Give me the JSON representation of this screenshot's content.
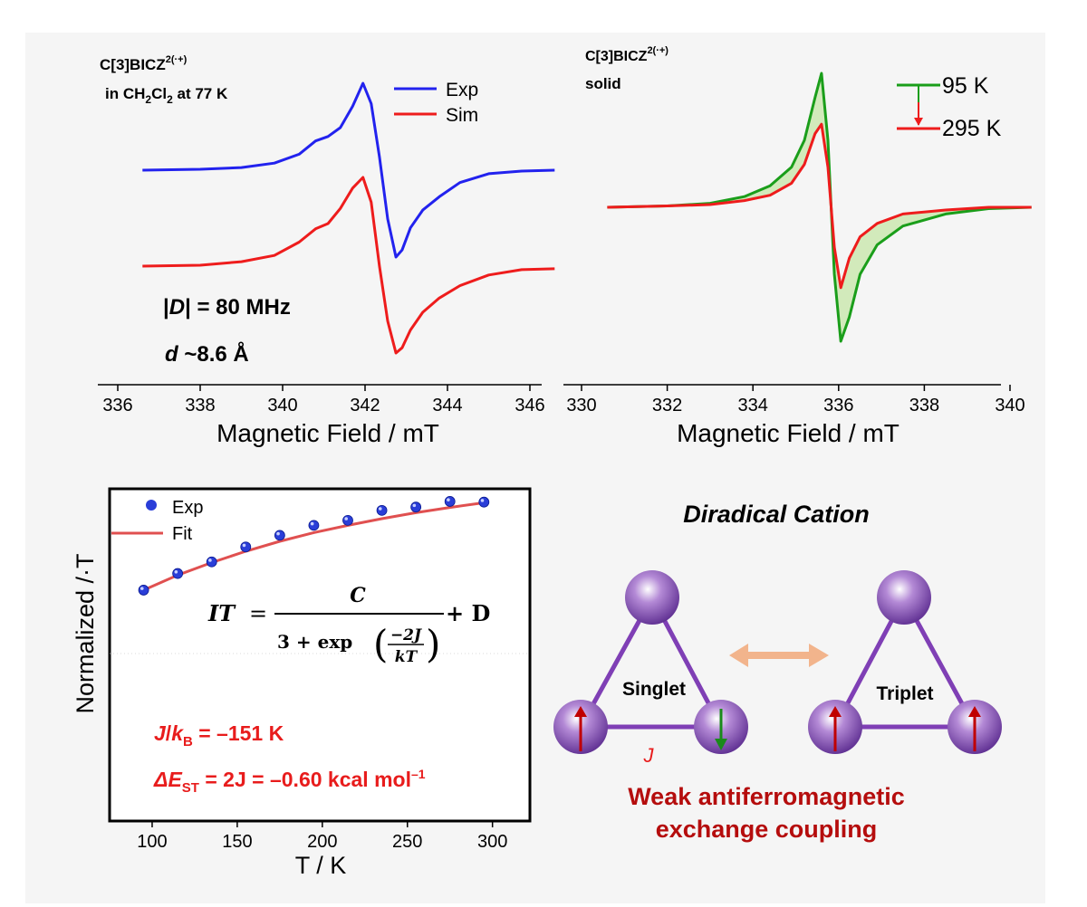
{
  "colors": {
    "background": "#f5f5f5",
    "exp": "#2222ee",
    "sim": "#ee1c1c",
    "green": "#1a9e1a",
    "red": "#ee1c1c",
    "dark_red": "#b50d0d",
    "purple": "#7f3fb5",
    "arrow": "#f2b48c"
  },
  "chart_data": [
    {
      "type": "line",
      "title": "C[3]BICZ",
      "title_sup": "2(·+)",
      "subtitle_parts": [
        "in CH",
        "2",
        "Cl",
        "2",
        " at 77 K"
      ],
      "xlabel": "Magnetic Field / mT",
      "ylabel": "",
      "xlim": [
        336,
        347
      ],
      "xticks": [
        336,
        338,
        340,
        342,
        344,
        346
      ],
      "legend_position": "top-right",
      "annotations": {
        "D_prefix": "|",
        "D_var": "D",
        "D_rest": "| = 80 MHz",
        "d_var": "d",
        "d_rest": " ~8.6 Å"
      },
      "series": [
        {
          "name": "Exp",
          "x": [
            336.6,
            338.0,
            339.0,
            339.8,
            340.4,
            340.8,
            341.1,
            341.4,
            341.7,
            341.95,
            342.15,
            342.35,
            342.55,
            342.75,
            342.9,
            343.1,
            343.4,
            343.8,
            344.3,
            345.0,
            345.8,
            346.6
          ],
          "y": [
            0.0,
            0.01,
            0.03,
            0.08,
            0.18,
            0.33,
            0.38,
            0.48,
            0.72,
            0.98,
            0.75,
            0.15,
            -0.55,
            -0.98,
            -0.9,
            -0.65,
            -0.45,
            -0.3,
            -0.14,
            -0.04,
            -0.01,
            0.0
          ]
        },
        {
          "name": "Sim",
          "x": [
            336.6,
            338.0,
            339.0,
            339.8,
            340.4,
            340.8,
            341.1,
            341.4,
            341.7,
            341.95,
            342.15,
            342.35,
            342.55,
            342.75,
            342.9,
            343.1,
            343.4,
            343.8,
            344.3,
            345.0,
            345.8,
            346.6
          ],
          "y": [
            0.0,
            0.01,
            0.05,
            0.12,
            0.27,
            0.42,
            0.48,
            0.65,
            0.88,
            1.0,
            0.72,
            0.0,
            -0.62,
            -0.98,
            -0.92,
            -0.72,
            -0.52,
            -0.36,
            -0.22,
            -0.1,
            -0.04,
            -0.03
          ]
        }
      ]
    },
    {
      "type": "line",
      "title": "C[3]BICZ",
      "title_sup": "2(·+)",
      "subtitle": "solid",
      "xlabel": "Magnetic Field / mT",
      "ylabel": "",
      "xlim": [
        330,
        341
      ],
      "xticks": [
        330,
        332,
        334,
        336,
        338,
        340
      ],
      "legend_position": "top-right",
      "series": [
        {
          "name": "95 K",
          "x": [
            330.6,
            332.0,
            333.0,
            333.8,
            334.4,
            334.9,
            335.2,
            335.45,
            335.6,
            335.75,
            335.9,
            336.05,
            336.25,
            336.5,
            336.9,
            337.5,
            338.5,
            339.5,
            340.5
          ],
          "y": [
            0.0,
            0.01,
            0.03,
            0.08,
            0.16,
            0.3,
            0.5,
            0.82,
            1.0,
            0.5,
            -0.5,
            -1.0,
            -0.82,
            -0.5,
            -0.28,
            -0.14,
            -0.05,
            -0.01,
            0.0
          ]
        },
        {
          "name": "295 K",
          "x": [
            330.6,
            332.0,
            333.0,
            333.8,
            334.4,
            334.9,
            335.2,
            335.45,
            335.6,
            335.75,
            335.9,
            336.05,
            336.25,
            336.5,
            336.9,
            337.5,
            338.5,
            339.5,
            340.5
          ],
          "y": [
            0.0,
            0.01,
            0.02,
            0.05,
            0.09,
            0.18,
            0.32,
            0.55,
            0.62,
            0.3,
            -0.3,
            -0.6,
            -0.38,
            -0.22,
            -0.12,
            -0.05,
            -0.02,
            0.0,
            0.0
          ]
        }
      ]
    },
    {
      "type": "scatter",
      "xlabel": "T / K",
      "ylabel": "Normalized /·T",
      "xlim": [
        75,
        322
      ],
      "ylim": [
        0,
        1
      ],
      "xticks": [
        100,
        150,
        200,
        250,
        300
      ],
      "legend_position": "top-left",
      "series": [
        {
          "name": "Exp",
          "x": [
            95,
            115,
            135,
            155,
            175,
            195,
            215,
            235,
            255,
            275,
            295
          ],
          "y": [
            0.695,
            0.745,
            0.78,
            0.825,
            0.86,
            0.89,
            0.905,
            0.935,
            0.945,
            0.962,
            0.96
          ]
        },
        {
          "name": "Fit",
          "x": [
            95,
            115,
            135,
            155,
            175,
            195,
            215,
            235,
            255,
            275,
            295
          ],
          "y": [
            0.695,
            0.74,
            0.778,
            0.812,
            0.842,
            0.868,
            0.89,
            0.91,
            0.928,
            0.944,
            0.958
          ]
        }
      ],
      "equation": {
        "lhs": "IT",
        "eq": "=",
        "num": "C",
        "den_a": "3 + exp",
        "den_num": "−2J",
        "den_den": "kT",
        "plus": "+ D"
      },
      "annotations": {
        "J_var": "J",
        "J_slash": "/",
        "J_k": "k",
        "J_sub": "B",
        "J_value": " = –151 K",
        "dE_var": "ΔE",
        "dE_sub": "ST",
        "dE_value": " = 2J = –0.60 kcal mol",
        "dE_sup": "–1"
      }
    }
  ],
  "diagram": {
    "title": "Diradical Cation",
    "singlet_label": "Singlet",
    "triplet_label": "Triplet",
    "coupling_label": "J",
    "caption_line1": "Weak antiferromagnetic",
    "caption_line2": "exchange coupling"
  }
}
